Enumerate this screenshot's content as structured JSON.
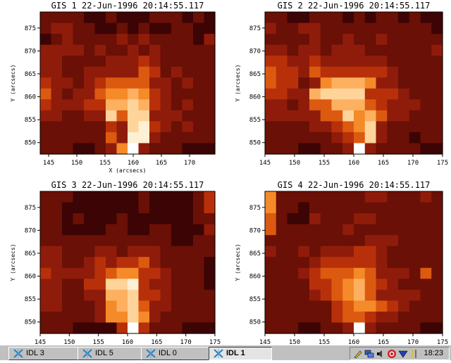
{
  "window": {
    "title": "IDL 1"
  },
  "panels": [
    {
      "title": "GIS 1 22-Jun-1996 20:14:55.117",
      "xlabel": "X (arcsecs)",
      "ylabel": "Y (arcsecs)",
      "xticks": [
        "145",
        "150",
        "155",
        "160",
        "165",
        "170"
      ],
      "yticks": [
        "850",
        "855",
        "860",
        "865",
        "870",
        "875"
      ],
      "xlim": [
        143.5,
        174.5
      ],
      "ylim": [
        847.5,
        878.5
      ],
      "grid": [
        "2222112111222121",
        "2332211212112211",
        "1232222323222213",
        "3333232232322222",
        "3322223334322222",
        "3322333335423222",
        "4332345555332322",
        "5323356676432222",
        "4333447787432322",
        "3322338588333222",
        "2222224389432322",
        "2222225399322222",
        "22211236a3222111"
      ]
    },
    {
      "title": "GIS 2 22-Jun-1996 20:14:55.117",
      "xlabel": "",
      "ylabel": "Y (arcsecs)",
      "xticks": [
        "145",
        "150",
        "155",
        "160",
        "165",
        "170",
        "175"
      ],
      "yticks": [
        "850",
        "855",
        "860",
        "865",
        "870",
        "875"
      ],
      "xlim": [
        145,
        175
      ],
      "ylim": [
        847.5,
        878.5
      ],
      "grid": [
        "2211222121221211",
        "3223322222222221",
        "2222322322322222",
        "3323323332222223",
        "4433433333322222",
        "5443544444432222",
        "5442367776332222",
        "4433788884443222",
        "3323557775433322",
        "3333355867533222",
        "2222334568322222",
        "2222223458322122",
        "22211223a3222211"
      ]
    },
    {
      "title": "GIS 3 22-Jun-1996 20:14:55.117",
      "xlabel": "",
      "ylabel": "Y (arcsecs)",
      "xticks": [
        "145",
        "150",
        "155",
        "160",
        "165",
        "170",
        "175"
      ],
      "yticks": [
        "850",
        "855",
        "860",
        "865",
        "870",
        "875"
      ],
      "xlim": [
        145,
        175
      ],
      "ylim": [
        847.5,
        878.5
      ],
      "grid": [
        "2221111112111124",
        "2211111112111124",
        "2212111211111122",
        "2211112211221113",
        "2222222222221122",
        "3322233233322222",
        "3322343445322221",
        "4333345664432221",
        "3322448894332221",
        "3322337784432222",
        "3322236785332222",
        "2222236686322222",
        "22211114a4222111"
      ]
    },
    {
      "title": "GIS 4 22-Jun-1996 20:14:55.117",
      "xlabel": "",
      "ylabel": "Y (arcsecs)",
      "xticks": [
        "145",
        "150",
        "155",
        "160",
        "165",
        "170",
        "175"
      ],
      "yticks": [
        "850",
        "855",
        "860",
        "865",
        "870",
        "875"
      ],
      "xlim": [
        145,
        175
      ],
      "ylim": [
        847.5,
        878.5
      ],
      "grid": [
        "6222222223322232",
        "6221222222222222",
        "5211322233222222",
        "5222222322222222",
        "2222222223332222",
        "3223233344322222",
        "2222344444322222",
        "2223455565333252",
        "2222445675432222",
        "2222345675333322",
        "2222224566543222",
        "2222224554332222",
        "22211223a3222211"
      ]
    }
  ],
  "taskbar": {
    "buttons": [
      {
        "label": "IDL 3",
        "icon": "idl-icon"
      },
      {
        "label": "IDL 5",
        "icon": "idl-icon"
      },
      {
        "label": "IDL 0",
        "icon": "idl-icon"
      },
      {
        "label": "IDL 1",
        "icon": "idl-icon",
        "active": true
      }
    ],
    "tray_icons": [
      "pencil-icon",
      "network-icon",
      "speaker-icon",
      "shield-icon",
      "arrow-down-icon",
      "wave-icon"
    ],
    "clock": "18:23"
  },
  "colors": {
    "palette": [
      "#140000",
      "#3c0404",
      "#6a1006",
      "#8f1c0a",
      "#b8300a",
      "#dc5a10",
      "#f58a28",
      "#fcb060",
      "#ffd49a",
      "#fff0d4",
      "#ffffff"
    ],
    "taskbar_bg": "#c0c0c0"
  }
}
